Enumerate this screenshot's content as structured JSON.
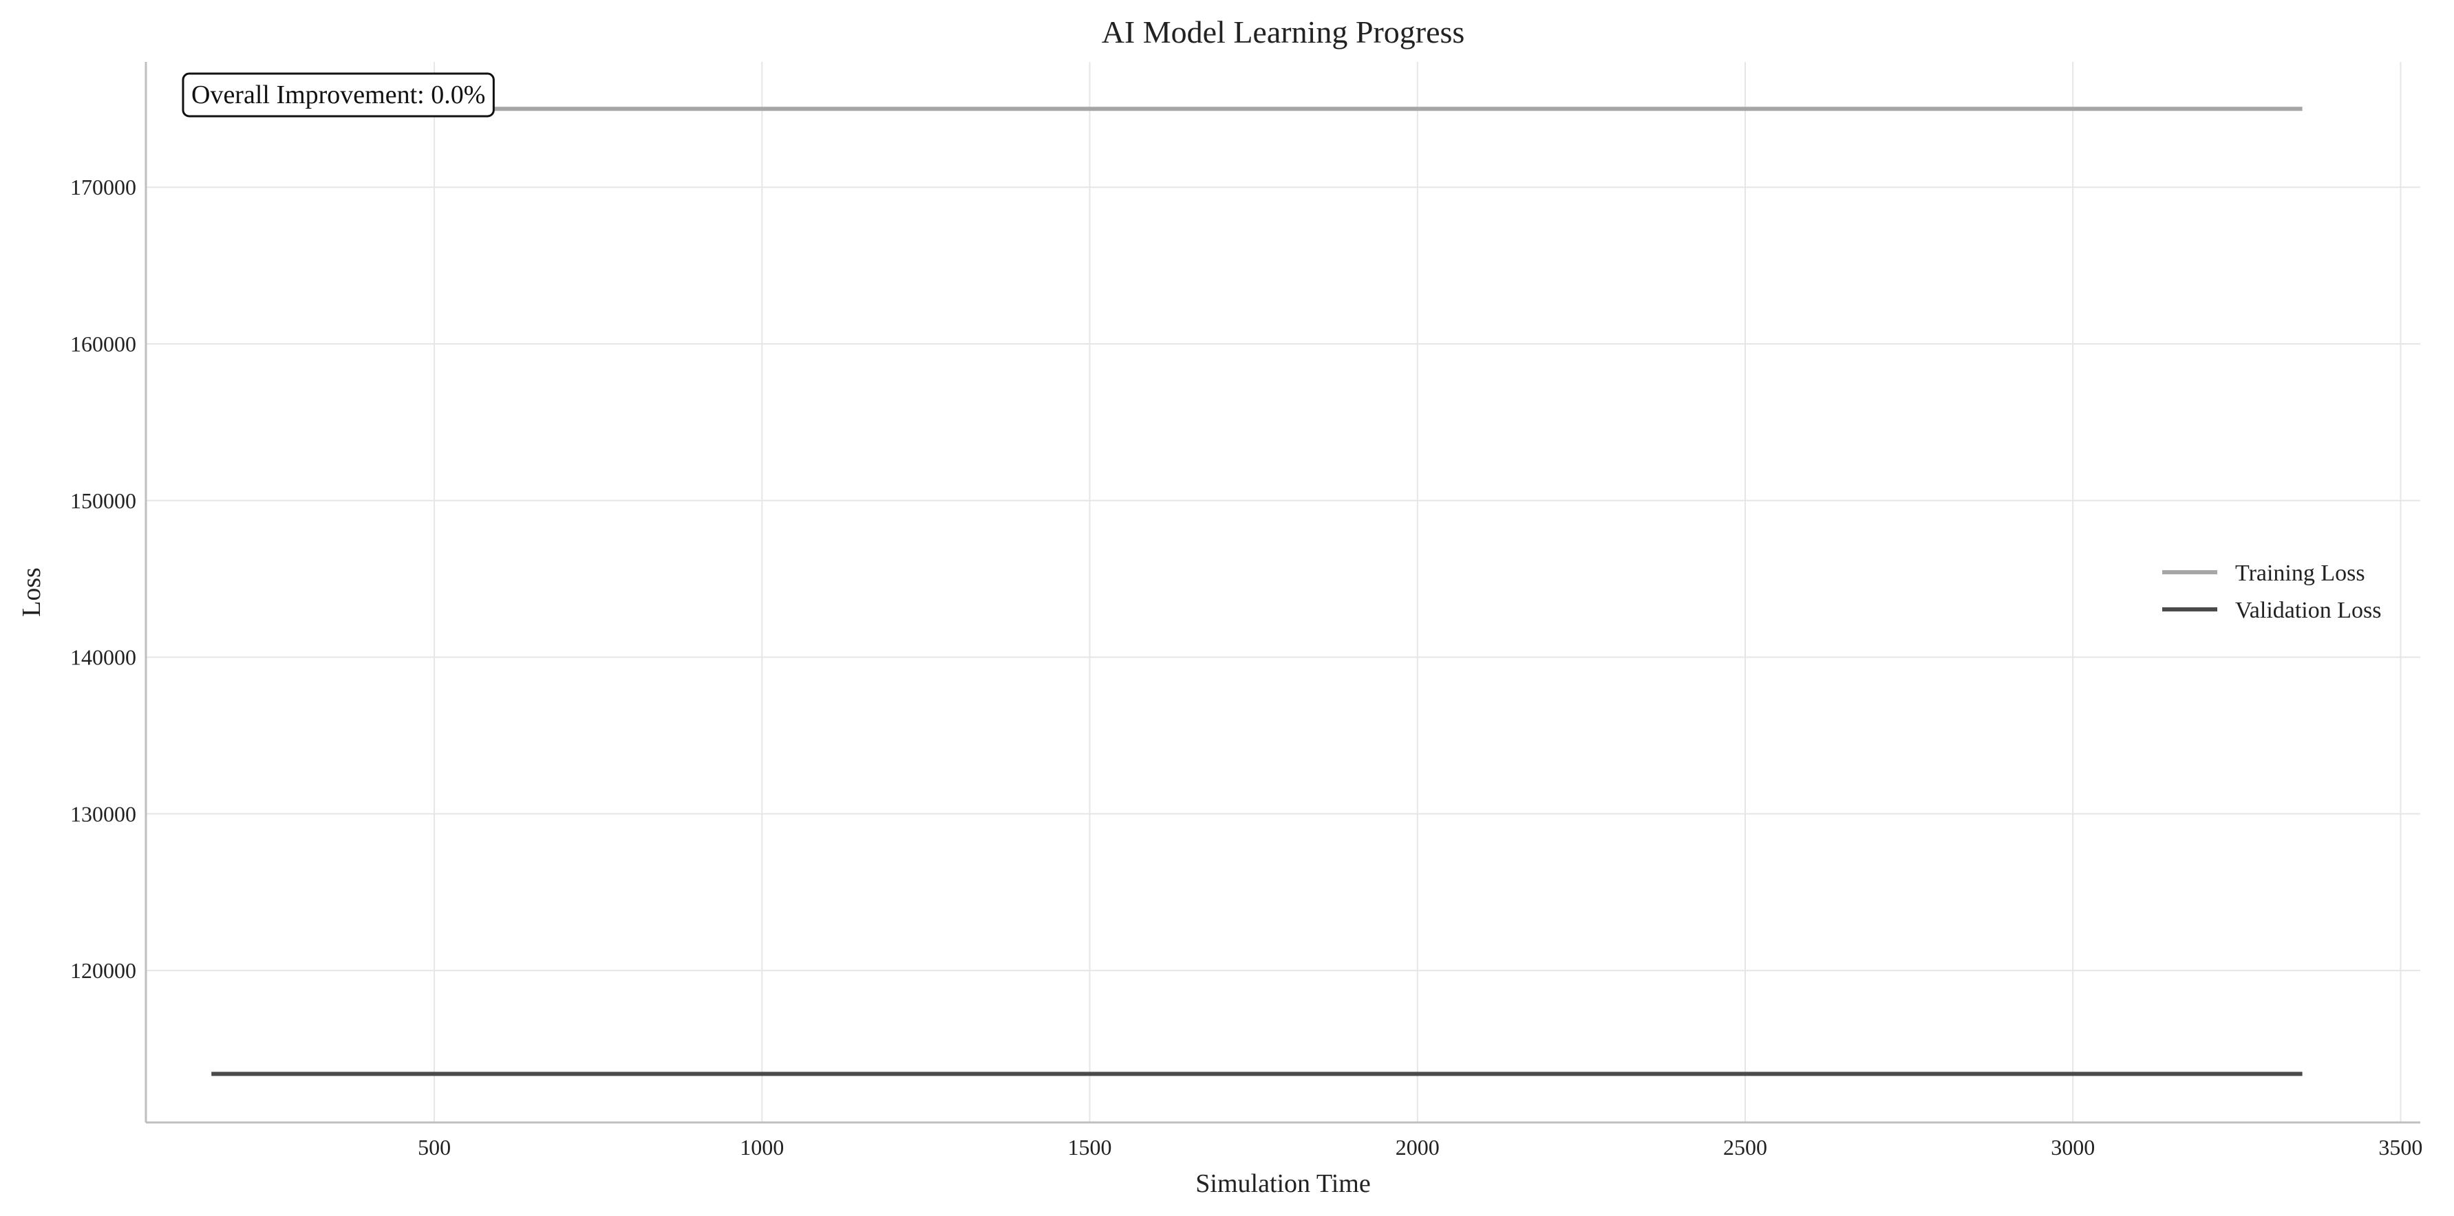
{
  "chart_data": {
    "type": "line",
    "title": "AI Model Learning Progress",
    "xlabel": "Simulation Time",
    "ylabel": "Loss",
    "xlim": [
      60,
      3530
    ],
    "ylim": [
      110300,
      178000
    ],
    "xticks": [
      500,
      1000,
      1500,
      2000,
      2500,
      3000,
      3500
    ],
    "yticks": [
      120000,
      130000,
      140000,
      150000,
      160000,
      170000
    ],
    "grid": true,
    "legend_position": "center-right",
    "series": [
      {
        "name": "Training Loss",
        "color": "#a6a6a6",
        "x": [
          160,
          3350
        ],
        "y": [
          175000,
          175000
        ]
      },
      {
        "name": "Validation Loss",
        "color": "#4a4a4a",
        "x": [
          160,
          3350
        ],
        "y": [
          113400,
          113400
        ]
      }
    ],
    "annotation": {
      "text": "Overall Improvement: 0.0%",
      "position": "top-left"
    }
  }
}
